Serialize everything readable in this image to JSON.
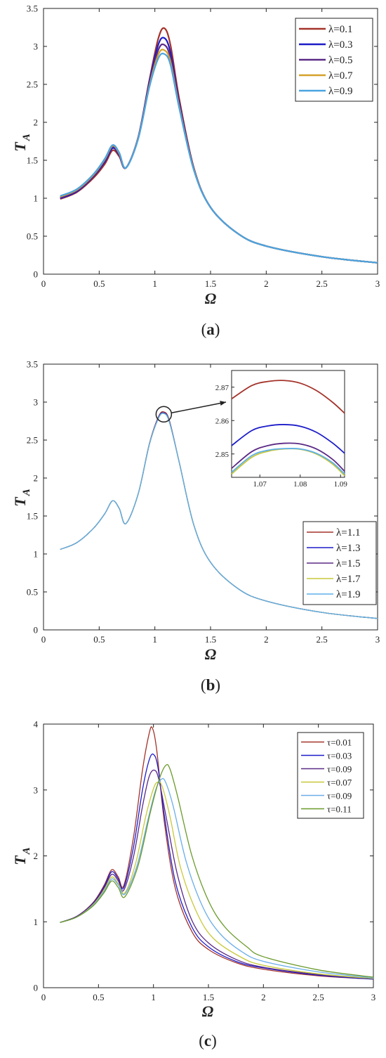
{
  "chart_data": [
    {
      "type": "line",
      "panel_label": "a",
      "xlabel": "Ω",
      "ylabel": "T",
      "ylabel_sub": "A",
      "xlim": [
        0,
        3
      ],
      "ylim": [
        0,
        3.5
      ],
      "xticks": [
        0,
        0.5,
        1,
        1.5,
        2,
        2.5,
        3
      ],
      "yticks": [
        0,
        0.5,
        1,
        1.5,
        2,
        2.5,
        3,
        3.5
      ],
      "xtick_labels": [
        "0",
        "0.5",
        "1",
        "1.5",
        "2",
        "2.5",
        "3"
      ],
      "ytick_labels": [
        "0",
        "0.5",
        "1",
        "1.5",
        "2",
        "2.5",
        "3",
        "3.5"
      ],
      "grid": false,
      "legend_position": "top-right",
      "series": [
        {
          "name": "λ=0.1",
          "color": "#a4332a",
          "x": [
            0.15,
            0.3,
            0.45,
            0.55,
            0.62,
            0.68,
            0.74,
            0.85,
            0.95,
            1.03,
            1.085,
            1.14,
            1.22,
            1.35,
            1.5,
            1.75,
            2.0,
            2.5,
            3.0
          ],
          "y": [
            0.99,
            1.08,
            1.27,
            1.45,
            1.63,
            1.55,
            1.4,
            1.8,
            2.55,
            3.1,
            3.24,
            3.02,
            2.3,
            1.4,
            0.88,
            0.53,
            0.37,
            0.23,
            0.15
          ]
        },
        {
          "name": "λ=0.3",
          "color": "#1c1cc9",
          "x": [
            0.15,
            0.3,
            0.45,
            0.55,
            0.62,
            0.68,
            0.74,
            0.85,
            0.95,
            1.03,
            1.085,
            1.14,
            1.22,
            1.35,
            1.5,
            1.75,
            2.0,
            2.5,
            3.0
          ],
          "y": [
            1.0,
            1.09,
            1.29,
            1.48,
            1.66,
            1.57,
            1.4,
            1.8,
            2.53,
            3.02,
            3.11,
            2.92,
            2.25,
            1.39,
            0.88,
            0.53,
            0.37,
            0.23,
            0.15
          ]
        },
        {
          "name": "λ=0.5",
          "color": "#5b2a86",
          "x": [
            0.15,
            0.3,
            0.45,
            0.55,
            0.62,
            0.68,
            0.74,
            0.85,
            0.95,
            1.03,
            1.085,
            1.14,
            1.22,
            1.35,
            1.5,
            1.75,
            2.0,
            2.5,
            3.0
          ],
          "y": [
            1.01,
            1.1,
            1.3,
            1.5,
            1.68,
            1.58,
            1.4,
            1.79,
            2.5,
            2.95,
            3.02,
            2.85,
            2.22,
            1.38,
            0.88,
            0.53,
            0.37,
            0.23,
            0.15
          ]
        },
        {
          "name": "λ=0.7",
          "color": "#d4a12a",
          "x": [
            0.15,
            0.3,
            0.45,
            0.55,
            0.62,
            0.68,
            0.74,
            0.85,
            0.95,
            1.03,
            1.085,
            1.14,
            1.22,
            1.35,
            1.5,
            1.75,
            2.0,
            2.5,
            3.0
          ],
          "y": [
            1.02,
            1.11,
            1.31,
            1.51,
            1.69,
            1.59,
            1.4,
            1.79,
            2.48,
            2.89,
            2.95,
            2.8,
            2.2,
            1.38,
            0.88,
            0.53,
            0.37,
            0.23,
            0.15
          ]
        },
        {
          "name": "λ=0.9",
          "color": "#4aa3e0",
          "x": [
            0.15,
            0.3,
            0.45,
            0.55,
            0.62,
            0.68,
            0.74,
            0.85,
            0.95,
            1.03,
            1.085,
            1.14,
            1.22,
            1.35,
            1.5,
            1.75,
            2.0,
            2.5,
            3.0
          ],
          "y": [
            1.03,
            1.12,
            1.32,
            1.52,
            1.7,
            1.6,
            1.4,
            1.78,
            2.46,
            2.84,
            2.9,
            2.76,
            2.18,
            1.37,
            0.88,
            0.53,
            0.37,
            0.23,
            0.15
          ]
        }
      ]
    },
    {
      "type": "line",
      "panel_label": "b",
      "xlabel": "Ω",
      "ylabel": "T",
      "ylabel_sub": "A",
      "xlim": [
        0,
        3
      ],
      "ylim": [
        0,
        3.5
      ],
      "xticks": [
        0,
        0.5,
        1,
        1.5,
        2,
        2.5,
        3
      ],
      "yticks": [
        0,
        0.5,
        1,
        1.5,
        2,
        2.5,
        3,
        3.5
      ],
      "xtick_labels": [
        "0",
        "0.5",
        "1",
        "1.5",
        "2",
        "2.5",
        "3"
      ],
      "ytick_labels": [
        "0",
        "0.5",
        "1",
        "1.5",
        "2",
        "2.5",
        "3",
        "3.5"
      ],
      "grid": false,
      "legend_position": "bottom-right",
      "series": [
        {
          "name": "λ=1.1",
          "color": "#a4332a",
          "x": [
            0.15,
            0.3,
            0.45,
            0.55,
            0.62,
            0.68,
            0.74,
            0.85,
            0.95,
            1.03,
            1.078,
            1.13,
            1.22,
            1.35,
            1.5,
            1.75,
            2.0,
            2.5,
            3.0
          ],
          "y": [
            1.06,
            1.15,
            1.34,
            1.53,
            1.7,
            1.6,
            1.4,
            1.79,
            2.45,
            2.8,
            2.872,
            2.76,
            2.2,
            1.38,
            0.89,
            0.54,
            0.38,
            0.23,
            0.15
          ]
        },
        {
          "name": "λ=1.3",
          "color": "#1c1cc9",
          "x": [
            0.15,
            0.3,
            0.45,
            0.55,
            0.62,
            0.68,
            0.74,
            0.85,
            0.95,
            1.03,
            1.078,
            1.13,
            1.22,
            1.35,
            1.5,
            1.75,
            2.0,
            2.5,
            3.0
          ],
          "y": [
            1.06,
            1.15,
            1.34,
            1.53,
            1.7,
            1.6,
            1.4,
            1.79,
            2.44,
            2.79,
            2.859,
            2.75,
            2.2,
            1.38,
            0.89,
            0.54,
            0.38,
            0.23,
            0.15
          ]
        },
        {
          "name": "λ=1.5",
          "color": "#5b2a86",
          "x": [
            0.15,
            0.3,
            0.45,
            0.55,
            0.62,
            0.68,
            0.74,
            0.85,
            0.95,
            1.03,
            1.078,
            1.13,
            1.22,
            1.35,
            1.5,
            1.75,
            2.0,
            2.5,
            3.0
          ],
          "y": [
            1.06,
            1.15,
            1.34,
            1.53,
            1.7,
            1.6,
            1.4,
            1.79,
            2.44,
            2.78,
            2.853,
            2.74,
            2.2,
            1.38,
            0.89,
            0.54,
            0.38,
            0.23,
            0.15
          ]
        },
        {
          "name": "λ=1.7",
          "color": "#c8c83a",
          "x": [
            0.15,
            0.3,
            0.45,
            0.55,
            0.62,
            0.68,
            0.74,
            0.85,
            0.95,
            1.03,
            1.078,
            1.13,
            1.22,
            1.35,
            1.5,
            1.75,
            2.0,
            2.5,
            3.0
          ],
          "y": [
            1.06,
            1.15,
            1.34,
            1.53,
            1.7,
            1.6,
            1.4,
            1.79,
            2.44,
            2.78,
            2.851,
            2.74,
            2.2,
            1.38,
            0.89,
            0.54,
            0.38,
            0.23,
            0.15
          ]
        },
        {
          "name": "λ=1.9",
          "color": "#5fb0e8",
          "x": [
            0.15,
            0.3,
            0.45,
            0.55,
            0.62,
            0.68,
            0.74,
            0.85,
            0.95,
            1.03,
            1.078,
            1.13,
            1.22,
            1.35,
            1.5,
            1.75,
            2.0,
            2.5,
            3.0
          ],
          "y": [
            1.06,
            1.15,
            1.34,
            1.53,
            1.7,
            1.6,
            1.4,
            1.79,
            2.44,
            2.78,
            2.851,
            2.74,
            2.2,
            1.38,
            0.89,
            0.54,
            0.38,
            0.23,
            0.15
          ]
        }
      ],
      "inset": {
        "xlim": [
          1.063,
          1.091
        ],
        "ylim": [
          2.843,
          2.875
        ],
        "xticks": [
          1.07,
          1.08,
          1.09
        ],
        "yticks": [
          2.85,
          2.86,
          2.87
        ],
        "xtick_labels": [
          "1.07",
          "1.08",
          "1.09"
        ],
        "ytick_labels": [
          "2.85",
          "2.86",
          "2.87"
        ],
        "zoom_center": [
          1.08,
          2.84
        ],
        "series": [
          {
            "color": "#a4332a",
            "x": [
              1.063,
              1.068,
              1.072,
              1.076,
              1.08,
              1.084,
              1.088,
              1.091
            ],
            "y": [
              2.8665,
              2.8705,
              2.8717,
              2.872,
              2.8712,
              2.869,
              2.8655,
              2.8622
            ]
          },
          {
            "color": "#1c1cc9",
            "x": [
              1.063,
              1.068,
              1.072,
              1.076,
              1.08,
              1.084,
              1.088,
              1.091
            ],
            "y": [
              2.8525,
              2.857,
              2.8584,
              2.8588,
              2.8583,
              2.8565,
              2.8533,
              2.8502
            ]
          },
          {
            "color": "#5b2a86",
            "x": [
              1.063,
              1.068,
              1.072,
              1.076,
              1.08,
              1.084,
              1.088,
              1.091
            ],
            "y": [
              2.8457,
              2.8507,
              2.8525,
              2.8532,
              2.853,
              2.8515,
              2.8484,
              2.8448
            ]
          },
          {
            "color": "#c8c83a",
            "x": [
              1.063,
              1.068,
              1.072,
              1.076,
              1.08,
              1.084,
              1.088,
              1.091
            ],
            "y": [
              2.844,
              2.849,
              2.8508,
              2.8515,
              2.8514,
              2.85,
              2.847,
              2.8435
            ]
          },
          {
            "color": "#5fb0e8",
            "x": [
              1.063,
              1.068,
              1.072,
              1.076,
              1.08,
              1.084,
              1.088,
              1.091
            ],
            "y": [
              2.8445,
              2.8495,
              2.8511,
              2.8516,
              2.8515,
              2.8502,
              2.8474,
              2.844
            ]
          }
        ]
      }
    },
    {
      "type": "line",
      "panel_label": "c",
      "xlabel": "Ω",
      "ylabel": "T",
      "ylabel_sub": "A",
      "xlim": [
        0,
        3
      ],
      "ylim": [
        0,
        4
      ],
      "xticks": [
        0,
        0.5,
        1,
        1.5,
        2,
        2.5,
        3
      ],
      "yticks": [
        0,
        1,
        2,
        3,
        4
      ],
      "xtick_labels": [
        "0",
        "0.5",
        "1",
        "1.5",
        "2",
        "2.5",
        "3"
      ],
      "ytick_labels": [
        "0",
        "1",
        "2",
        "3",
        "4"
      ],
      "grid": false,
      "legend_position": "top-right",
      "series": [
        {
          "name": "τ=0.01",
          "color": "#a4332a",
          "x": [
            0.15,
            0.3,
            0.45,
            0.55,
            0.62,
            0.68,
            0.73,
            0.82,
            0.9,
            0.96,
            0.99,
            1.03,
            1.1,
            1.2,
            1.35,
            1.5,
            1.75,
            2.0,
            2.5,
            3.0
          ],
          "y": [
            0.99,
            1.08,
            1.29,
            1.55,
            1.79,
            1.68,
            1.55,
            2.3,
            3.3,
            3.85,
            3.94,
            3.6,
            2.5,
            1.5,
            0.85,
            0.58,
            0.38,
            0.28,
            0.18,
            0.13
          ]
        },
        {
          "name": "τ=0.03",
          "color": "#1c1cc9",
          "x": [
            0.15,
            0.3,
            0.45,
            0.55,
            0.62,
            0.68,
            0.73,
            0.82,
            0.9,
            0.96,
            1.0,
            1.04,
            1.1,
            1.2,
            1.35,
            1.5,
            1.75,
            2.0,
            2.5,
            3.0
          ],
          "y": [
            0.99,
            1.08,
            1.28,
            1.53,
            1.76,
            1.65,
            1.52,
            2.15,
            3.0,
            3.45,
            3.54,
            3.35,
            2.6,
            1.6,
            0.92,
            0.62,
            0.4,
            0.3,
            0.19,
            0.13
          ]
        },
        {
          "name": "τ=0.09",
          "color": "#5b2a86",
          "x": [
            0.15,
            0.3,
            0.45,
            0.55,
            0.62,
            0.68,
            0.73,
            0.82,
            0.9,
            0.96,
            1.01,
            1.05,
            1.12,
            1.22,
            1.35,
            1.5,
            1.75,
            2.0,
            2.5,
            3.0
          ],
          "y": [
            0.99,
            1.08,
            1.27,
            1.51,
            1.72,
            1.62,
            1.48,
            2.0,
            2.75,
            3.2,
            3.3,
            3.15,
            2.55,
            1.7,
            1.02,
            0.68,
            0.43,
            0.31,
            0.2,
            0.14
          ]
        },
        {
          "name": "τ=0.07",
          "color": "#c8c83a",
          "x": [
            0.15,
            0.3,
            0.45,
            0.55,
            0.62,
            0.68,
            0.74,
            0.84,
            0.93,
            1.0,
            1.04,
            1.08,
            1.15,
            1.25,
            1.4,
            1.55,
            1.8,
            2.0,
            2.5,
            3.0
          ],
          "y": [
            0.99,
            1.07,
            1.26,
            1.48,
            1.68,
            1.58,
            1.44,
            1.9,
            2.6,
            3.02,
            3.12,
            3.05,
            2.6,
            1.8,
            1.12,
            0.74,
            0.46,
            0.34,
            0.21,
            0.14
          ]
        },
        {
          "name": "τ=0.09",
          "color": "#6aaee8",
          "x": [
            0.15,
            0.3,
            0.45,
            0.55,
            0.62,
            0.68,
            0.74,
            0.85,
            0.95,
            1.02,
            1.07,
            1.11,
            1.18,
            1.3,
            1.45,
            1.6,
            1.8,
            2.0,
            2.5,
            3.0
          ],
          "y": [
            0.99,
            1.07,
            1.25,
            1.46,
            1.65,
            1.56,
            1.42,
            1.85,
            2.55,
            3.0,
            3.16,
            3.12,
            2.75,
            1.9,
            1.22,
            0.83,
            0.55,
            0.4,
            0.24,
            0.15
          ]
        },
        {
          "name": "τ=0.11",
          "color": "#6a9a2a",
          "x": [
            0.15,
            0.3,
            0.45,
            0.55,
            0.62,
            0.68,
            0.74,
            0.86,
            0.97,
            1.05,
            1.11,
            1.15,
            1.22,
            1.35,
            1.5,
            1.65,
            1.85,
            2.0,
            2.5,
            3.0
          ],
          "y": [
            0.99,
            1.07,
            1.24,
            1.44,
            1.62,
            1.52,
            1.38,
            1.85,
            2.65,
            3.15,
            3.37,
            3.32,
            2.9,
            2.0,
            1.32,
            0.92,
            0.62,
            0.47,
            0.27,
            0.16
          ]
        }
      ]
    }
  ]
}
